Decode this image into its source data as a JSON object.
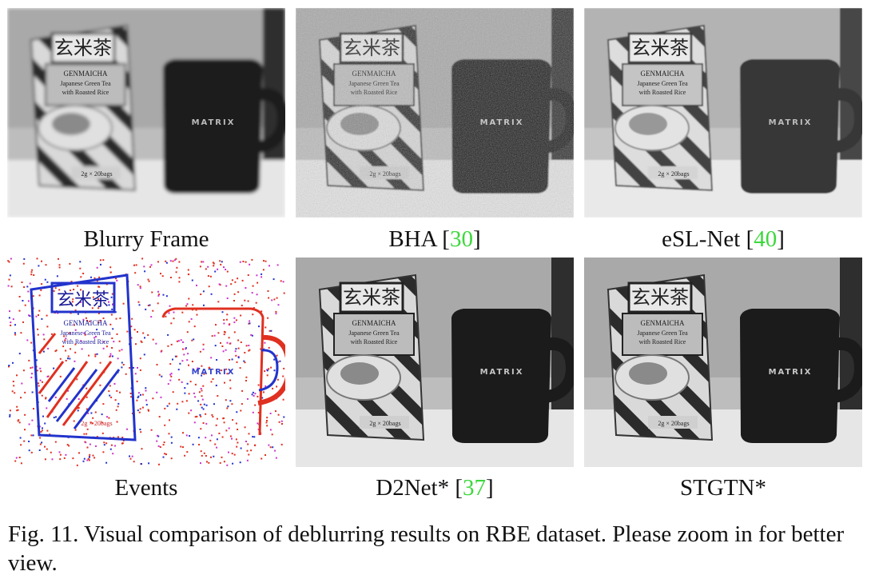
{
  "panels": [
    {
      "caption": "Blurry Frame",
      "ref": "",
      "variant": "blur"
    },
    {
      "caption": "BHA",
      "ref": "30",
      "variant": "noisy"
    },
    {
      "caption": "eSL-Net",
      "ref": "40",
      "variant": "smooth"
    },
    {
      "caption": "Events",
      "ref": "",
      "variant": "events"
    },
    {
      "caption": "D2Net*",
      "ref": "37",
      "variant": "clean"
    },
    {
      "caption": "STGTN*",
      "ref": "",
      "variant": "clean"
    }
  ],
  "box_text": {
    "cjk": "玄米茶",
    "line1": "GENMAICHA",
    "line2": "Japanese Green Tea",
    "line3": "with Roasted Rice",
    "bottom": "2g × 20bags"
  },
  "mug_text": "MATRIX",
  "figure_caption": "Fig. 11.  Visual comparison of deblurring results on RBE dataset. Please zoom in for better view."
}
